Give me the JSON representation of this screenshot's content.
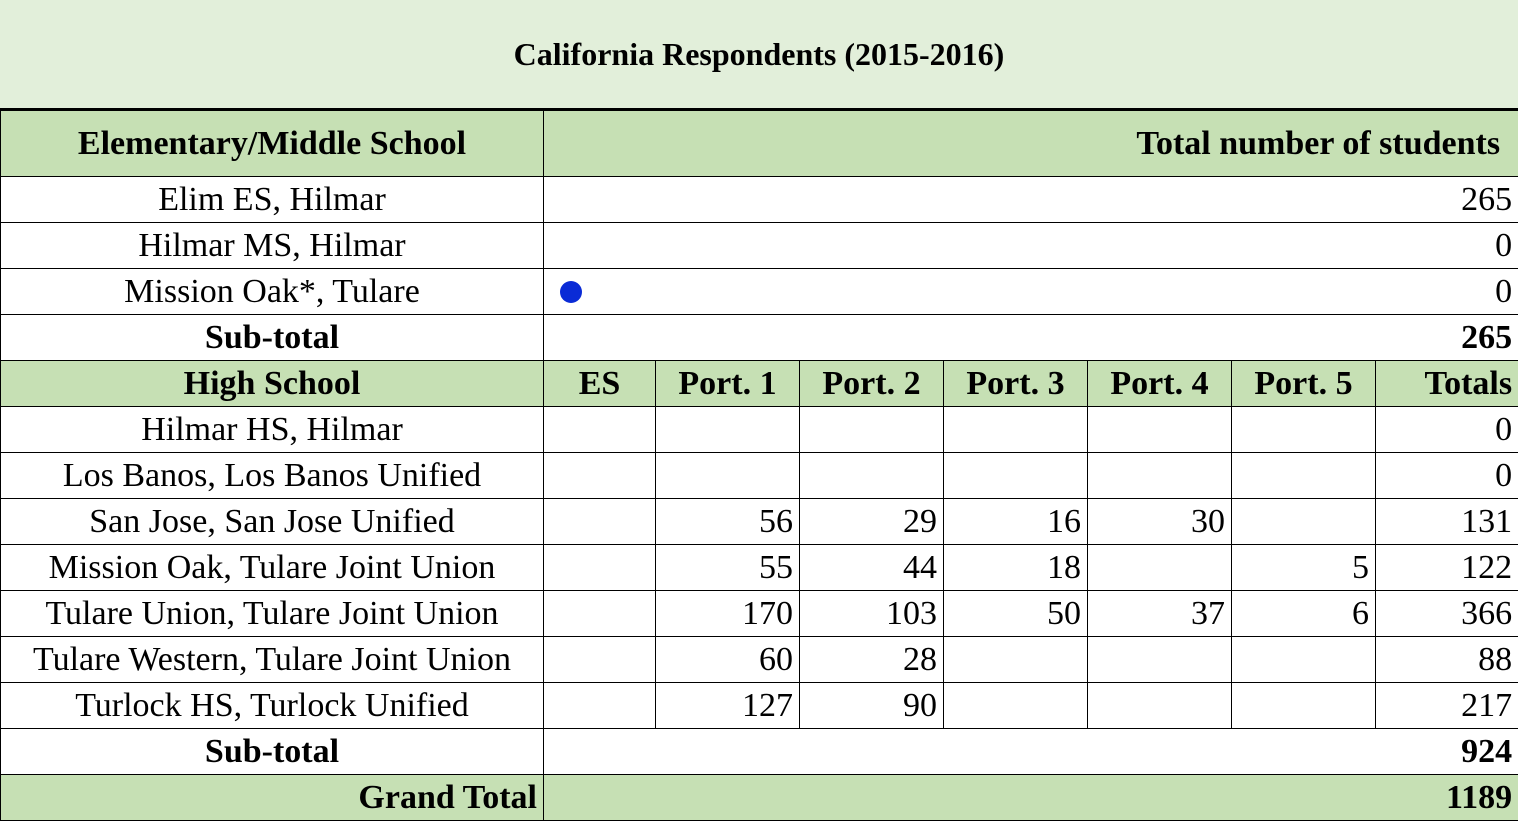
{
  "title": "California Respondents  (2015-2016)",
  "elementary": {
    "header_school": "Elementary/Middle  School",
    "header_total": "Total number of students",
    "rows": [
      {
        "school": "Elim ES, Hilmar",
        "total": "265"
      },
      {
        "school": "Hilmar MS, Hilmar",
        "total": "0"
      },
      {
        "school": "Mission Oak*, Tulare",
        "total": "0"
      }
    ],
    "subtotal_label": "Sub-total",
    "subtotal_value": "265"
  },
  "high": {
    "header_school": "High School",
    "header_cols": [
      "ES",
      "Port. 1",
      "Port. 2",
      "Port. 3",
      "Port. 4",
      "Port. 5",
      "Totals"
    ],
    "rows": [
      {
        "school": "Hilmar HS, Hilmar",
        "cells": [
          "",
          "",
          "",
          "",
          "",
          "",
          "0"
        ]
      },
      {
        "school": "Los Banos, Los Banos Unified",
        "cells": [
          "",
          "",
          "",
          "",
          "",
          "",
          "0"
        ]
      },
      {
        "school": "San Jose, San Jose Unified",
        "cells": [
          "",
          "56",
          "29",
          "16",
          "30",
          "",
          "131"
        ]
      },
      {
        "school": "Mission Oak, Tulare Joint Union",
        "cells": [
          "",
          "55",
          "44",
          "18",
          "",
          "5",
          "122"
        ]
      },
      {
        "school": "Tulare Union, Tulare Joint Union",
        "cells": [
          "",
          "170",
          "103",
          "50",
          "37",
          "6",
          "366"
        ]
      },
      {
        "school": "Tulare Western, Tulare Joint Union",
        "cells": [
          "",
          "60",
          "28",
          "",
          "",
          "",
          "88"
        ]
      },
      {
        "school": "Turlock HS, Turlock Unified",
        "cells": [
          "",
          "127",
          "90",
          "",
          "",
          "",
          "217"
        ]
      }
    ],
    "subtotal_label": "Sub-total",
    "subtotal_value": "924"
  },
  "grand_total_label": "Grand Total",
  "grand_total_value": "1189",
  "colors": {
    "title_band": "#e2efda",
    "header_band": "#c6e0b4",
    "marker_dot": "#0a2bd6"
  },
  "marker": {
    "icon": "blue-dot-icon"
  }
}
